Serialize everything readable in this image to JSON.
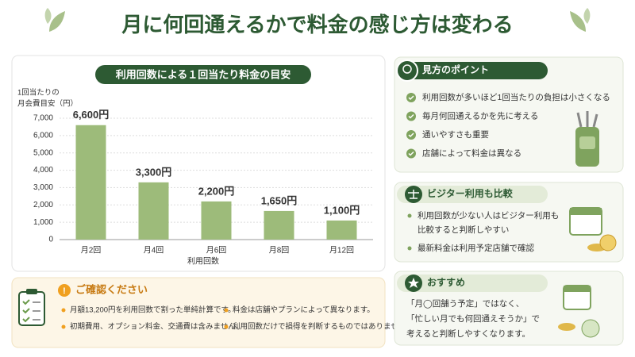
{
  "title": "月に何回通えるかで料金の感じ方は変わる",
  "chart_data": {
    "type": "bar",
    "title": "利用回数による１回当たり料金の目安",
    "y_label": [
      "1回当たりの",
      "月会費目安（円）"
    ],
    "x_label": "利用回数",
    "categories": [
      "月2回",
      "月4回",
      "月6回",
      "月8回",
      "月12回"
    ],
    "values": [
      6600,
      3300,
      2200,
      1650,
      1100
    ],
    "value_labels": [
      "6,600円",
      "3,300円",
      "2,200円",
      "1,650円",
      "1,100円"
    ],
    "color": "#9dbb7a",
    "ylim": [
      0,
      7000
    ],
    "yticks": [
      0,
      {
        "value": 1000,
        "label": "1,000"
      },
      {
        "value": 2000,
        "label": "2,000"
      },
      {
        "value": 3000,
        "label": "3,000"
      },
      {
        "value": 4000,
        "label": "4,000"
      },
      {
        "value": 5000,
        "label": "5,000"
      },
      {
        "value": 6000,
        "label": "6,000"
      },
      {
        "value": 7000,
        "label": "7,000"
      }
    ],
    "grid": true
  },
  "notice": {
    "title": "ご確認ください",
    "items": [
      "月額13,200円を利用回数で割った単純計算です。",
      "料金は店舗やプランによって異なります。",
      "初期費用、オプション料金、交通費は含みません。",
      "利用回数だけで損得を判断するものではありません。"
    ]
  },
  "points": {
    "title": "見方のポイント",
    "items": [
      "利用回数が多いほど1回当たりの負担は小さくなる",
      "毎月何回通えるかを先に考える",
      "通いやすさも重要",
      "店舗によって料金は異なる"
    ]
  },
  "visitor": {
    "title": "ビジター利用も比較",
    "items": [
      [
        "利用回数が少ない人はビジター利用も",
        "比較すると判断しやすい"
      ],
      [
        "最新料金は利用予定店舗で確認"
      ]
    ]
  },
  "recommend": {
    "title": "おすすめ",
    "lines": [
      "「月◯回舗う予定」ではなく、",
      "「忙しい月でも何回通えそうか」で",
      "考えると判断しやすくなります。"
    ]
  }
}
